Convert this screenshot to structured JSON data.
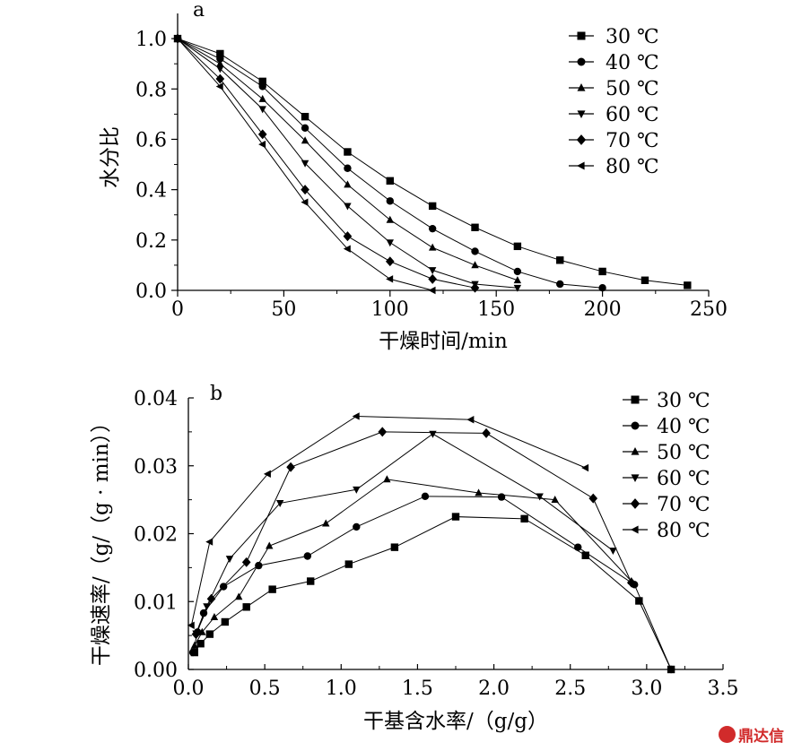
{
  "chart_data": [
    {
      "panel_label": "a",
      "type": "line",
      "xlabel": "干燥时间/min",
      "ylabel": "水分比",
      "xlim": [
        0,
        250
      ],
      "ylim": [
        0,
        1.1
      ],
      "xticks": [
        "0",
        "50",
        "100",
        "150",
        "200",
        "250"
      ],
      "yticks": [
        "0.0",
        "0.2",
        "0.4",
        "0.6",
        "0.8",
        "1.0"
      ],
      "legend_position": "top-right",
      "series": [
        {
          "name": "30 ℃",
          "marker": "square",
          "points": [
            [
              0,
              1.0
            ],
            [
              20,
              0.94
            ],
            [
              40,
              0.83
            ],
            [
              60,
              0.69
            ],
            [
              80,
              0.55
            ],
            [
              100,
              0.435
            ],
            [
              120,
              0.335
            ],
            [
              140,
              0.25
            ],
            [
              160,
              0.175
            ],
            [
              180,
              0.12
            ],
            [
              200,
              0.075
            ],
            [
              220,
              0.04
            ],
            [
              240,
              0.02
            ]
          ]
        },
        {
          "name": "40 ℃",
          "marker": "circle",
          "points": [
            [
              0,
              1.0
            ],
            [
              20,
              0.92
            ],
            [
              40,
              0.81
            ],
            [
              60,
              0.645
            ],
            [
              80,
              0.485
            ],
            [
              100,
              0.355
            ],
            [
              120,
              0.245
            ],
            [
              140,
              0.155
            ],
            [
              160,
              0.075
            ],
            [
              180,
              0.025
            ],
            [
              200,
              0.01
            ]
          ]
        },
        {
          "name": "50 ℃",
          "marker": "triangle-up",
          "points": [
            [
              0,
              1.0
            ],
            [
              20,
              0.9
            ],
            [
              40,
              0.76
            ],
            [
              60,
              0.595
            ],
            [
              80,
              0.42
            ],
            [
              100,
              0.28
            ],
            [
              120,
              0.17
            ],
            [
              140,
              0.1
            ],
            [
              160,
              0.04
            ]
          ]
        },
        {
          "name": "60 ℃",
          "marker": "triangle-down",
          "points": [
            [
              0,
              1.0
            ],
            [
              20,
              0.88
            ],
            [
              40,
              0.72
            ],
            [
              60,
              0.505
            ],
            [
              80,
              0.335
            ],
            [
              100,
              0.19
            ],
            [
              120,
              0.08
            ],
            [
              140,
              0.025
            ],
            [
              160,
              0.01
            ]
          ]
        },
        {
          "name": "70 ℃",
          "marker": "diamond",
          "points": [
            [
              0,
              1.0
            ],
            [
              20,
              0.84
            ],
            [
              40,
              0.62
            ],
            [
              60,
              0.4
            ],
            [
              80,
              0.215
            ],
            [
              100,
              0.115
            ],
            [
              120,
              0.045
            ],
            [
              140,
              0.01
            ]
          ]
        },
        {
          "name": "80 ℃",
          "marker": "triangle-left",
          "points": [
            [
              0,
              1.0
            ],
            [
              20,
              0.81
            ],
            [
              40,
              0.58
            ],
            [
              60,
              0.35
            ],
            [
              80,
              0.165
            ],
            [
              100,
              0.045
            ],
            [
              120,
              0.0
            ]
          ]
        }
      ]
    },
    {
      "panel_label": "b",
      "type": "line",
      "xlabel": "干基含水率/（g/g）",
      "ylabel": "干燥速率/（g/（g · min））",
      "xlim": [
        0,
        3.5
      ],
      "ylim": [
        0,
        0.04
      ],
      "xticks": [
        "0.0",
        "0.5",
        "1.0",
        "1.5",
        "2.0",
        "2.5",
        "3.0",
        "3.5"
      ],
      "yticks": [
        "0.00",
        "0.01",
        "0.02",
        "0.03",
        "0.04"
      ],
      "legend_position": "top-right",
      "series": [
        {
          "name": "30 ℃",
          "marker": "square",
          "points": [
            [
              3.16,
              0.0
            ],
            [
              2.95,
              0.0101
            ],
            [
              2.6,
              0.0168
            ],
            [
              2.2,
              0.0222
            ],
            [
              1.75,
              0.0225
            ],
            [
              1.35,
              0.018
            ],
            [
              1.05,
              0.0155
            ],
            [
              0.8,
              0.013
            ],
            [
              0.55,
              0.0118
            ],
            [
              0.38,
              0.0092
            ],
            [
              0.24,
              0.007
            ],
            [
              0.14,
              0.0052
            ],
            [
              0.08,
              0.0038
            ],
            [
              0.04,
              0.0025
            ]
          ]
        },
        {
          "name": "40 ℃",
          "marker": "circle",
          "points": [
            [
              3.16,
              0.0
            ],
            [
              2.92,
              0.0125
            ],
            [
              2.55,
              0.018
            ],
            [
              2.05,
              0.0254
            ],
            [
              1.55,
              0.0255
            ],
            [
              1.1,
              0.021
            ],
            [
              0.78,
              0.0167
            ],
            [
              0.46,
              0.0153
            ],
            [
              0.23,
              0.0122
            ],
            [
              0.1,
              0.0083
            ],
            [
              0.06,
              0.0055
            ],
            [
              0.03,
              0.0025
            ]
          ]
        },
        {
          "name": "50 ℃",
          "marker": "triangle-up",
          "points": [
            [
              2.9,
              0.013
            ],
            [
              2.4,
              0.025
            ],
            [
              1.9,
              0.026
            ],
            [
              1.3,
              0.028
            ],
            [
              0.9,
              0.0215
            ],
            [
              0.53,
              0.0182
            ],
            [
              0.33,
              0.0107
            ],
            [
              0.17,
              0.0077
            ],
            [
              0.09,
              0.0055
            ],
            [
              0.04,
              0.0035
            ]
          ]
        },
        {
          "name": "60 ℃",
          "marker": "triangle-down",
          "points": [
            [
              2.78,
              0.0175
            ],
            [
              2.3,
              0.0255
            ],
            [
              1.6,
              0.0347
            ],
            [
              1.1,
              0.0265
            ],
            [
              0.6,
              0.0245
            ],
            [
              0.27,
              0.0163
            ],
            [
              0.12,
              0.0093
            ],
            [
              0.05,
              0.0053
            ]
          ]
        },
        {
          "name": "70 ℃",
          "marker": "diamond",
          "points": [
            [
              2.9,
              0.0128
            ],
            [
              2.65,
              0.0252
            ],
            [
              1.95,
              0.0348
            ],
            [
              1.27,
              0.035
            ],
            [
              0.67,
              0.0298
            ],
            [
              0.38,
              0.0158
            ],
            [
              0.15,
              0.0104
            ],
            [
              0.05,
              0.0052
            ]
          ]
        },
        {
          "name": "80 ℃",
          "marker": "triangle-left",
          "points": [
            [
              2.6,
              0.0297
            ],
            [
              1.85,
              0.0368
            ],
            [
              1.1,
              0.0373
            ],
            [
              0.52,
              0.0288
            ],
            [
              0.14,
              0.0188
            ],
            [
              0.02,
              0.0065
            ]
          ]
        }
      ]
    }
  ],
  "watermark": {
    "text": "鼎达信",
    "color": "#d12b2b"
  }
}
